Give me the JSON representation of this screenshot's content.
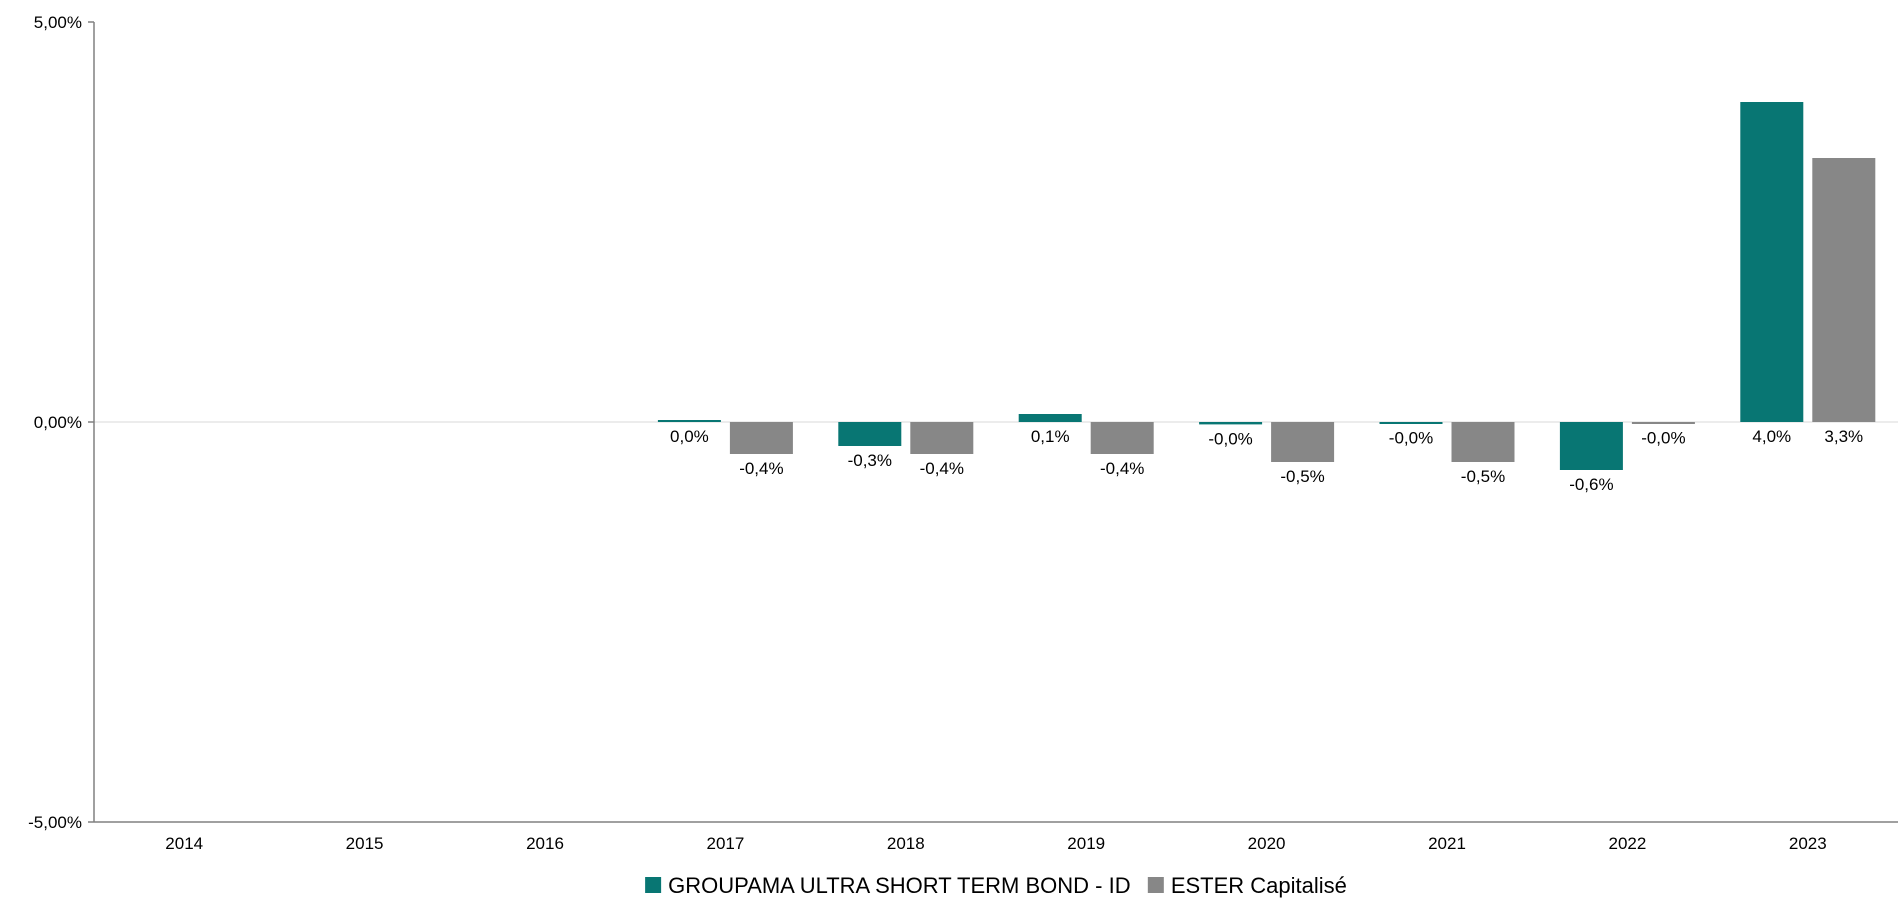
{
  "chart_data": {
    "type": "bar",
    "title": "",
    "xlabel": "",
    "ylabel": "",
    "categories": [
      "2014",
      "2015",
      "2016",
      "2017",
      "2018",
      "2019",
      "2020",
      "2021",
      "2022",
      "2023"
    ],
    "series": [
      {
        "name": "GROUPAMA ULTRA SHORT TERM BOND - ID",
        "color": "#087673",
        "values": [
          null,
          null,
          null,
          0.02,
          -0.3,
          0.1,
          -0.03,
          -0.02,
          -0.6,
          4.0
        ],
        "labels": [
          "",
          "",
          "",
          "0,0%",
          "-0,3%",
          "0,1%",
          "-0,0%",
          "-0,0%",
          "-0,6%",
          "4,0%"
        ]
      },
      {
        "name": "ESTER Capitalisé",
        "color": "#878787",
        "values": [
          null,
          null,
          null,
          -0.4,
          -0.4,
          -0.4,
          -0.5,
          -0.5,
          -0.02,
          3.3
        ],
        "labels": [
          "",
          "",
          "",
          "-0,4%",
          "-0,4%",
          "-0,4%",
          "-0,5%",
          "-0,5%",
          "-0,0%",
          "3,3%"
        ]
      }
    ],
    "ylim": [
      -5,
      5
    ],
    "yticks": [
      5,
      0,
      -5
    ],
    "ytick_labels": [
      "5,00%",
      "0,00%",
      "-5,00%"
    ],
    "grid": false,
    "legend": "bottom-center"
  },
  "colors": {
    "axis": "#808080",
    "zero_line": "#d9d9d9"
  }
}
